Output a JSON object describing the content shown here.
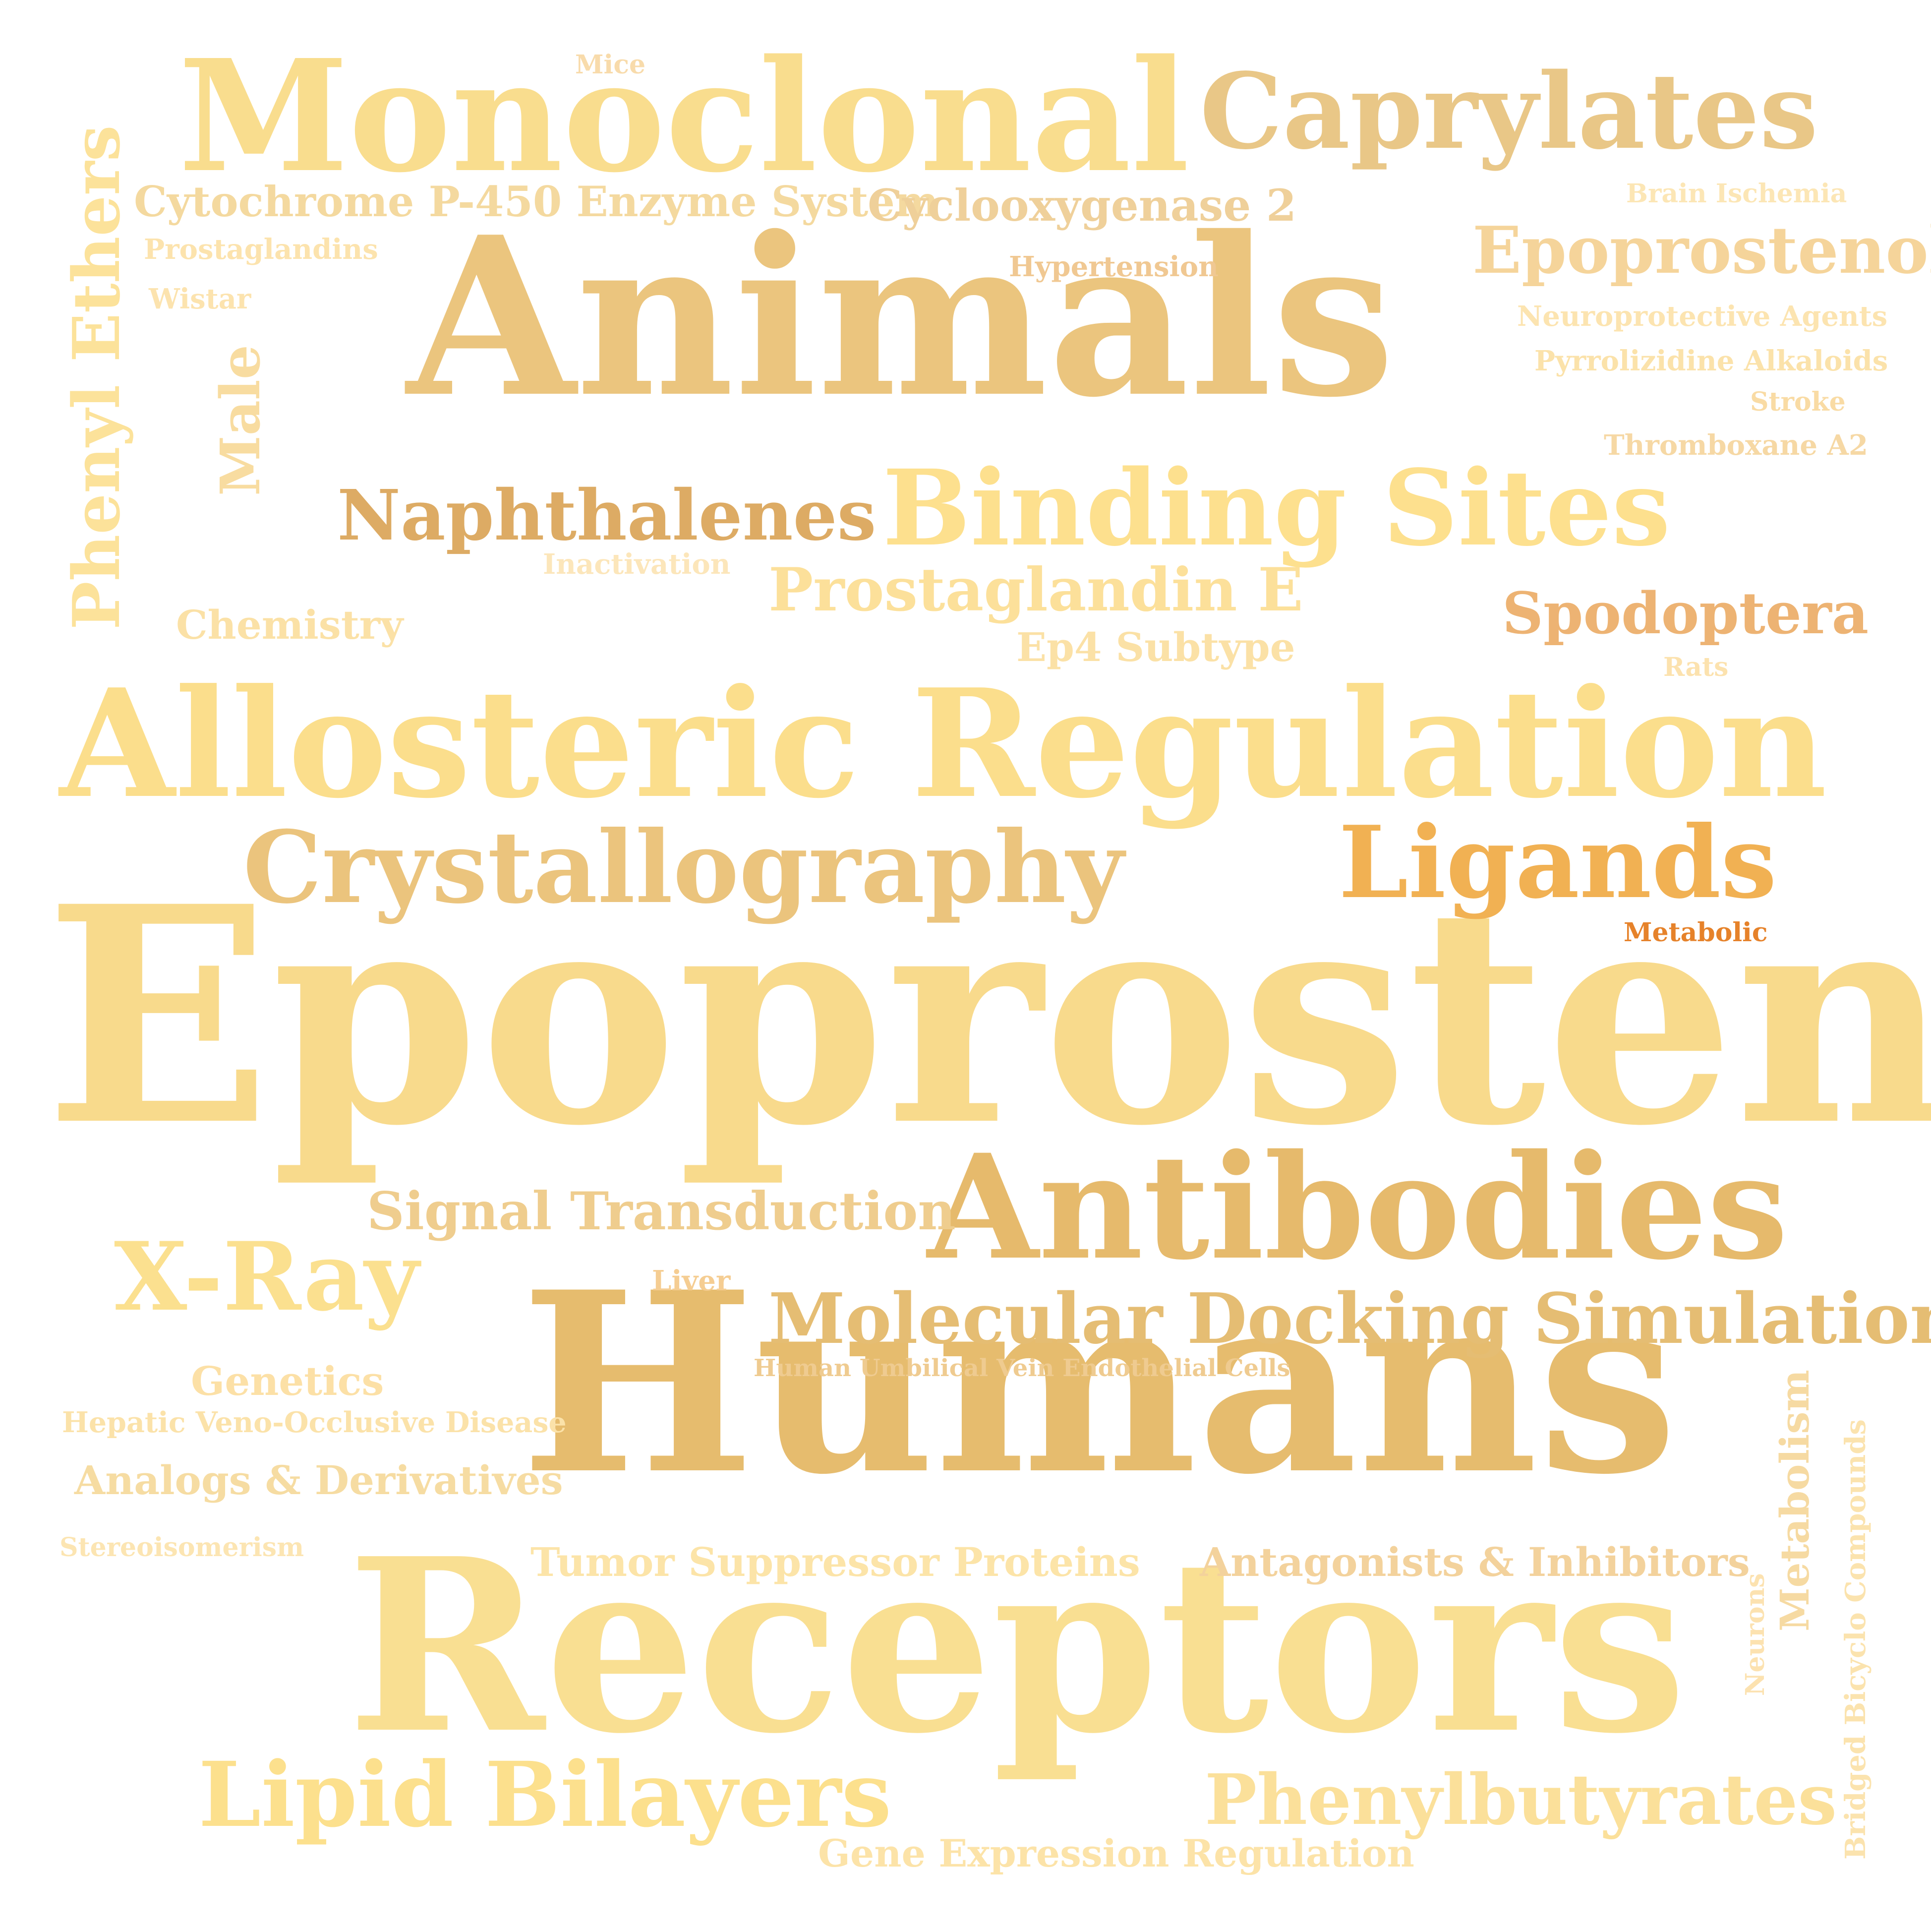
{
  "words": [
    {
      "text": "Epoprostenol",
      "color": "#F8DA8C"
    },
    {
      "text": "Humans",
      "color": "#E6BC6E"
    },
    {
      "text": "Receptors",
      "color": "#F9DF92"
    },
    {
      "text": "Animals",
      "color": "#EBC57E"
    },
    {
      "text": "Allosteric Regulation",
      "color": "#FBDE8C"
    },
    {
      "text": "Monoclonal",
      "color": "#F9DD8E"
    },
    {
      "text": "Antibodies",
      "color": "#E6BA6C"
    },
    {
      "text": "Binding Sites",
      "color": "#FDE08E"
    },
    {
      "text": "Crystallography",
      "color": "#EBC47D"
    },
    {
      "text": "Caprylates",
      "color": "#E9C787"
    },
    {
      "text": "Ligands",
      "color": "#F1B153"
    },
    {
      "text": "X-Ray",
      "color": "#FBE08F"
    },
    {
      "text": "Lipid Bilayers",
      "color": "#FCE08D"
    },
    {
      "text": "Molecular Docking Simulation",
      "color": "#E5BD73"
    },
    {
      "text": "Phenylbutyrates",
      "color": "#FBE09A"
    },
    {
      "text": "Naphthalenes",
      "color": "#DDAB64"
    },
    {
      "text": "Epoprostenol",
      "color": "#F5D49A"
    },
    {
      "text": "Prostaglandin E",
      "color": "#FCE09A"
    },
    {
      "text": "Signal Transduction",
      "color": "#EFCD8E"
    },
    {
      "text": "Spodoptera",
      "color": "#EDB373"
    },
    {
      "text": "Phenyl Ethers",
      "color": "#FCE29A"
    },
    {
      "text": "Cytochrome P-450 Enzyme System",
      "color": "#F4D99F"
    },
    {
      "text": "Cyclooxygenase 2",
      "color": "#EFD09A"
    },
    {
      "text": "Male",
      "color": "#F8DCA0"
    },
    {
      "text": "Tumor Suppressor Proteins",
      "color": "#FCE4A8"
    },
    {
      "text": "Antagonists & Inhibitors",
      "color": "#F3D29C"
    },
    {
      "text": "Analogs & Derivatives",
      "color": "#F6DCA2"
    },
    {
      "text": "Gene Expression Regulation",
      "color": "#FCE3A8"
    },
    {
      "text": "Metabolism",
      "color": "#F6DAA2"
    },
    {
      "text": "Chemistry",
      "color": "#FBE1A6"
    },
    {
      "text": "Genetics",
      "color": "#FCE0A6"
    },
    {
      "text": "Ep4 Subtype",
      "color": "#FBE1A6"
    },
    {
      "text": "Hepatic Veno-Occlusive Disease",
      "color": "#FBE2A9"
    },
    {
      "text": "Human Umbilical Vein Endothelial Cells",
      "color": "#EFCB90"
    },
    {
      "text": "Bridged Bicyclo Compounds",
      "color": "#FBE3AE"
    },
    {
      "text": "Hypertension",
      "color": "#F0C892"
    },
    {
      "text": "Neuroprotective Agents",
      "color": "#FCE4B0"
    },
    {
      "text": "Pyrrolizidine Alkaloids",
      "color": "#FBE2AA"
    },
    {
      "text": "Thromboxane A2",
      "color": "#F6D8A4"
    },
    {
      "text": "Stereoisomerism",
      "color": "#FCE5B2"
    },
    {
      "text": "Prostaglandins",
      "color": "#FCE3AD"
    },
    {
      "text": "Liver",
      "color": "#F5CD92"
    },
    {
      "text": "Inactivation",
      "color": "#FCE6BA"
    },
    {
      "text": "Brain Ischemia",
      "color": "#FCE6B5"
    },
    {
      "text": "Stroke",
      "color": "#F9DBA4"
    },
    {
      "text": "Wistar",
      "color": "#FCE3AE"
    },
    {
      "text": "Mice",
      "color": "#F8DBAB"
    },
    {
      "text": "Rats",
      "color": "#FCE2AE"
    },
    {
      "text": "Neurons",
      "color": "#FCE2B0"
    },
    {
      "text": "Metabolic",
      "color": "#E6822A"
    }
  ]
}
